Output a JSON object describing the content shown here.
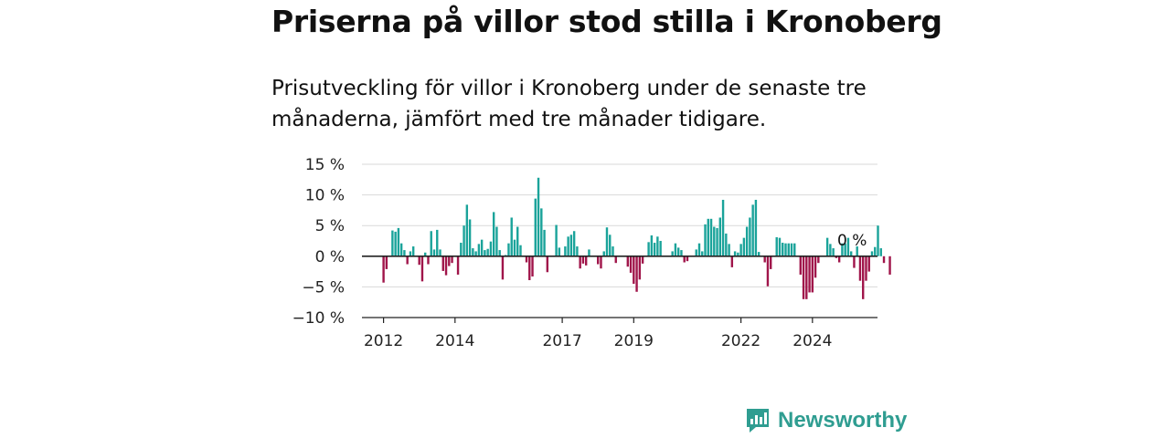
{
  "title": "Priserna på villor stod stilla i Kronoberg",
  "subtitle": "Prisutveckling för villor i Kronoberg under de senaste tre månaderna, jämfört med tre månader tidigare.",
  "logo": {
    "text": "Newsworthy",
    "icon": "newsworthy-logo-icon"
  },
  "colors": {
    "positive": "#1aa39a",
    "negative": "#a0154a",
    "grid": "#d9d9d9",
    "axis": "#333333",
    "logo": "#2f9d91"
  },
  "chart_data": {
    "type": "bar",
    "title": "",
    "xlabel": "",
    "ylabel": "",
    "ylim": [
      -10,
      15
    ],
    "yticks": [
      15,
      10,
      5,
      0,
      -5,
      -10
    ],
    "ytick_labels": [
      "15 %",
      "10 %",
      "5 %",
      "0 %",
      "−5 %",
      "−10 %"
    ],
    "x_ticks": [
      "2012",
      "2014",
      "2017",
      "2019",
      "2022",
      "2024"
    ],
    "x_start": "2012-01",
    "annotation": "0 %",
    "grid": true,
    "values": [
      -4.3,
      -2.1,
      0,
      4.2,
      4,
      4.6,
      2.1,
      1,
      -1.3,
      0.8,
      1.6,
      0,
      -1.4,
      -4.1,
      0.6,
      -1.3,
      4.1,
      1.1,
      4.3,
      1.1,
      -2.4,
      -3.1,
      -1.6,
      -1.1,
      0,
      -3,
      2.2,
      5,
      8.4,
      6,
      1.3,
      0.8,
      2,
      2.7,
      1,
      1.2,
      2.4,
      7.2,
      4.8,
      1,
      -3.8,
      0.2,
      2.1,
      6.3,
      2.7,
      4.8,
      1.8,
      0,
      -1,
      -3.9,
      -3.3,
      9.4,
      12.8,
      7.8,
      4.3,
      -2.6,
      0,
      0,
      5.1,
      1.4,
      0,
      1.6,
      3.2,
      3.5,
      4.1,
      1.6,
      -2,
      -1.2,
      -1.5,
      1.1,
      0,
      0,
      -1.3,
      -2,
      0.8,
      4.7,
      3.5,
      1.6,
      -1.1,
      0,
      0,
      0,
      -1.7,
      -2.7,
      -4.5,
      -5.8,
      -3.8,
      -1.2,
      0,
      2.3,
      3.4,
      2.2,
      3.2,
      2.5,
      0,
      0,
      0,
      0.8,
      2.1,
      1.4,
      1,
      -1,
      -0.8,
      0,
      0,
      1.1,
      2.1,
      0.8,
      5.2,
      6.1,
      6.1,
      4.8,
      4.6,
      6.3,
      9.2,
      3.7,
      2,
      -1.8,
      0.8,
      0.6,
      2,
      3,
      4.8,
      6.3,
      8.4,
      9.2,
      0.7,
      0,
      -1,
      -4.9,
      -2.1,
      0,
      3.1,
      3,
      2.2,
      2.1,
      2.1,
      2.1,
      2.1,
      0,
      -3,
      -7,
      -7,
      -5.9,
      -5.9,
      -3.5,
      -1.1,
      0,
      0,
      3,
      2,
      1.3,
      -0.3,
      -1,
      2.1,
      2.1,
      3,
      0.8,
      -1.9,
      1.6,
      -4,
      -7,
      -4,
      -2.5,
      0.8,
      1.5,
      5,
      1.3,
      -1.1,
      0,
      -3
    ]
  }
}
